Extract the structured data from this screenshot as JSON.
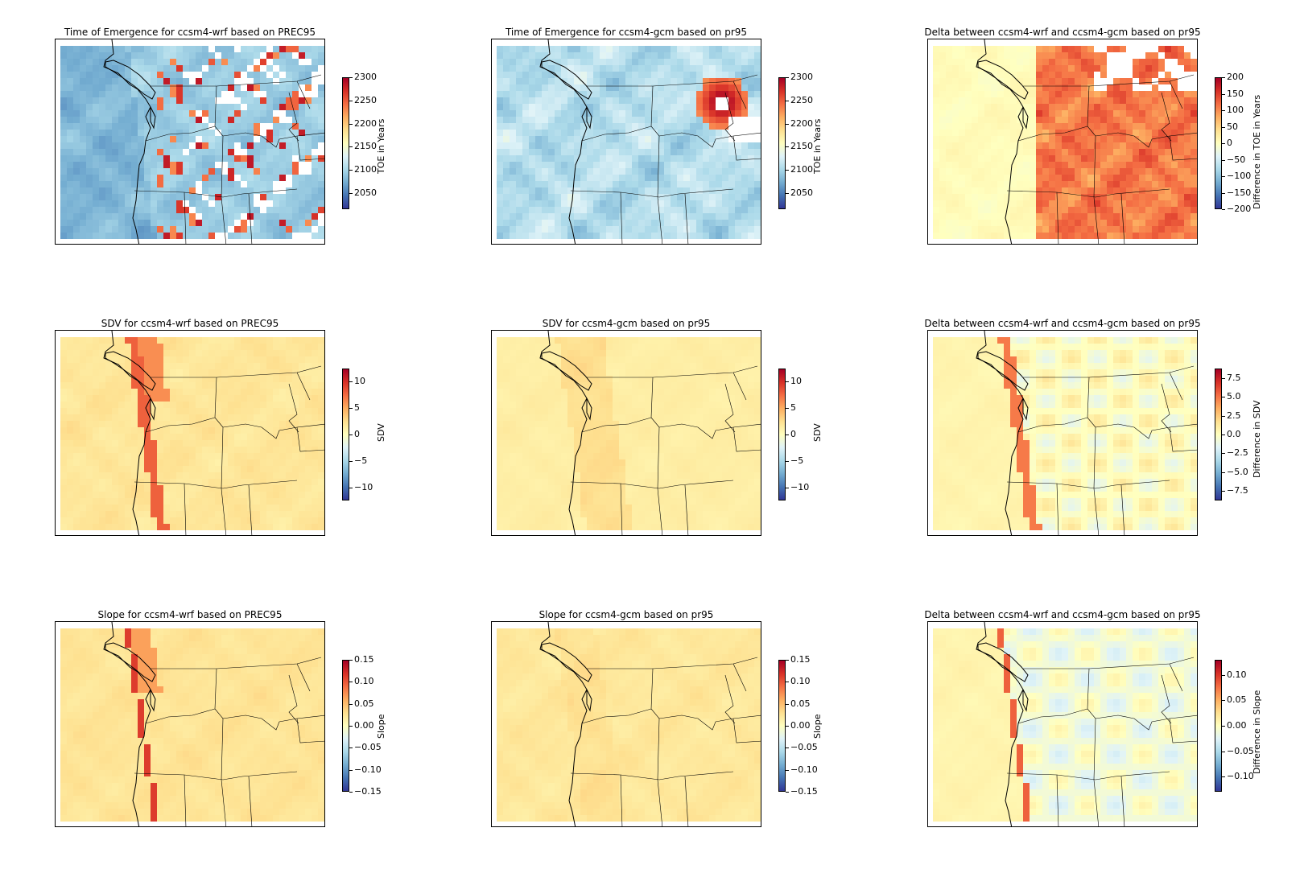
{
  "panels": [
    {
      "title": "Time of Emergence for ccsm4-wrf based on PREC95",
      "kind": "toe_wrf",
      "colorbar": {
        "label": "TOE in Years",
        "min": 2015,
        "max": 2300,
        "ticks": [
          "2300",
          "2250",
          "2200",
          "2150",
          "2100",
          "2050"
        ],
        "tick_values": [
          2300,
          2250,
          2200,
          2150,
          2100,
          2050
        ]
      }
    },
    {
      "title": "Time of Emergence for ccsm4-gcm based on pr95",
      "kind": "toe_gcm",
      "colorbar": {
        "label": "TOE in Years",
        "min": 2015,
        "max": 2300,
        "ticks": [
          "2300",
          "2250",
          "2200",
          "2150",
          "2100",
          "2050"
        ],
        "tick_values": [
          2300,
          2250,
          2200,
          2150,
          2100,
          2050
        ]
      }
    },
    {
      "title": "Delta between ccsm4-wrf and ccsm4-gcm based on pr95",
      "kind": "toe_delta",
      "colorbar": {
        "label": "Difference in TOE in Years",
        "min": -200,
        "max": 200,
        "ticks": [
          "200",
          "150",
          "100",
          "50",
          "0",
          "−50",
          "−100",
          "−150",
          "−200"
        ],
        "tick_values": [
          200,
          150,
          100,
          50,
          0,
          -50,
          -100,
          -150,
          -200
        ]
      }
    },
    {
      "title": "SDV for ccsm4-wrf based on PREC95",
      "kind": "sdv_wrf",
      "colorbar": {
        "label": "SDV",
        "min": -12.5,
        "max": 12.5,
        "ticks": [
          "10",
          "5",
          "0",
          "−5",
          "−10"
        ],
        "tick_values": [
          10,
          5,
          0,
          -5,
          -10
        ]
      }
    },
    {
      "title": "SDV for ccsm4-gcm based on pr95",
      "kind": "sdv_gcm",
      "colorbar": {
        "label": "SDV",
        "min": -12.5,
        "max": 12.5,
        "ticks": [
          "10",
          "5",
          "0",
          "−5",
          "−10"
        ],
        "tick_values": [
          10,
          5,
          0,
          -5,
          -10
        ]
      }
    },
    {
      "title": "Delta between ccsm4-wrf and ccsm4-gcm based on pr95",
      "kind": "sdv_delta",
      "colorbar": {
        "label": "Difference in SDV",
        "min": -8.75,
        "max": 8.75,
        "ticks": [
          "7.5",
          "5.0",
          "2.5",
          "0.0",
          "−2.5",
          "−5.0",
          "−7.5"
        ],
        "tick_values": [
          7.5,
          5.0,
          2.5,
          0.0,
          -2.5,
          -5.0,
          -7.5
        ]
      }
    },
    {
      "title": "Slope for ccsm4-wrf based on PREC95",
      "kind": "slope_wrf",
      "colorbar": {
        "label": "Slope",
        "min": -0.15,
        "max": 0.15,
        "ticks": [
          "0.15",
          "0.10",
          "0.05",
          "0.00",
          "−0.05",
          "−0.10",
          "−0.15"
        ],
        "tick_values": [
          0.15,
          0.1,
          0.05,
          0.0,
          -0.05,
          -0.1,
          -0.15
        ]
      }
    },
    {
      "title": "Slope for ccsm4-gcm based on pr95",
      "kind": "slope_gcm",
      "colorbar": {
        "label": "Slope",
        "min": -0.15,
        "max": 0.15,
        "ticks": [
          "0.15",
          "0.10",
          "0.05",
          "0.00",
          "−0.05",
          "−0.10",
          "−0.15"
        ],
        "tick_values": [
          0.15,
          0.1,
          0.05,
          0.0,
          -0.05,
          -0.1,
          -0.15
        ]
      }
    },
    {
      "title": "Delta between ccsm4-wrf and ccsm4-gcm based on pr95",
      "kind": "slope_delta",
      "colorbar": {
        "label": "Difference in Slope",
        "min": -0.13,
        "max": 0.13,
        "ticks": [
          "0.10",
          "0.05",
          "0.00",
          "−0.05",
          "−0.10"
        ],
        "tick_values": [
          0.1,
          0.05,
          0.0,
          -0.05,
          -0.1
        ]
      }
    }
  ],
  "colormap": [
    "#313695",
    "#4575b4",
    "#74add1",
    "#abd9e9",
    "#e0f3f8",
    "#ffffbf",
    "#fee090",
    "#fdae61",
    "#f46d43",
    "#d73027",
    "#a50026"
  ]
}
